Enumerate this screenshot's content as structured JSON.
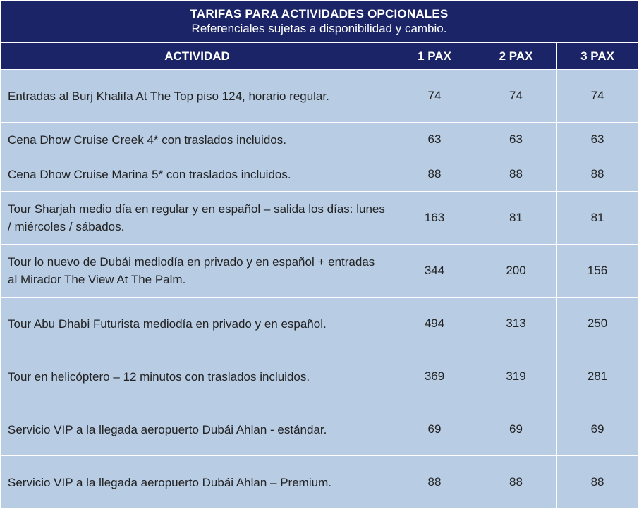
{
  "header": {
    "title": "TARIFAS PARA ACTIVIDADES OPCIONALES",
    "subtitle": "Referenciales sujetas a disponibilidad y cambio."
  },
  "columns": [
    "ACTIVIDAD",
    "1 PAX",
    "2 PAX",
    "3 PAX"
  ],
  "rows": [
    {
      "activity": "Entradas al Burj Khalifa At The Top piso 124, horario regular.",
      "pax1": "74",
      "pax2": "74",
      "pax3": "74"
    },
    {
      "activity": "Cena Dhow Cruise Creek 4* con traslados incluidos.",
      "pax1": "63",
      "pax2": "63",
      "pax3": "63"
    },
    {
      "activity": "Cena Dhow Cruise Marina 5* con traslados incluidos.",
      "pax1": "88",
      "pax2": "88",
      "pax3": "88"
    },
    {
      "activity": "Tour Sharjah medio día en regular y en español – salida los días: lunes / miércoles / sábados.",
      "pax1": "163",
      "pax2": "81",
      "pax3": "81"
    },
    {
      "activity": "Tour lo nuevo de Dubái mediodía en privado y en español + entradas al Mirador The View At The Palm.",
      "pax1": "344",
      "pax2": "200",
      "pax3": "156"
    },
    {
      "activity": "Tour Abu Dhabi Futurista mediodía en privado y en español.",
      "pax1": "494",
      "pax2": "313",
      "pax3": "250"
    },
    {
      "activity": "Tour en helicóptero – 12 minutos con traslados incluidos.",
      "pax1": "369",
      "pax2": "319",
      "pax3": "281"
    },
    {
      "activity": "Servicio VIP a la llegada aeropuerto Dubái Ahlan - estándar.",
      "pax1": "69",
      "pax2": "69",
      "pax3": "69"
    },
    {
      "activity": "Servicio VIP a la llegada aeropuerto Dubái Ahlan – Premium.",
      "pax1": "88",
      "pax2": "88",
      "pax3": "88"
    }
  ]
}
